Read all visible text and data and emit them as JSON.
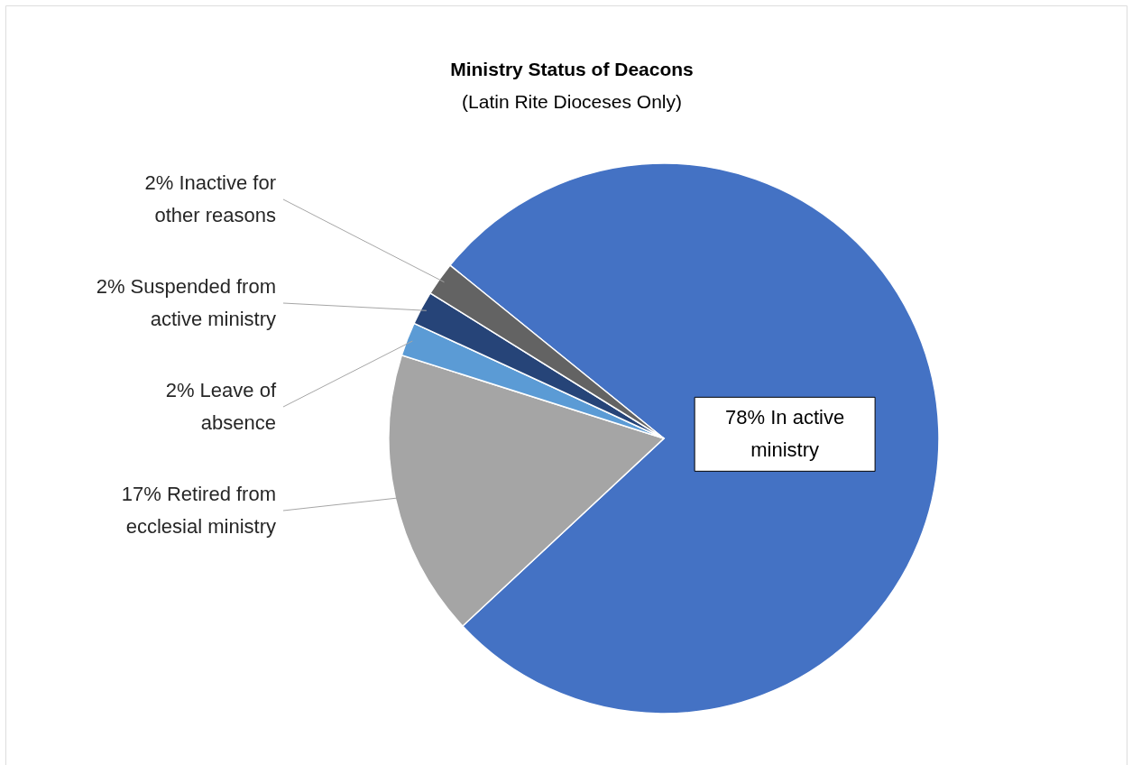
{
  "chart_data": {
    "type": "pie",
    "title": "Ministry Status of Deacons",
    "subtitle": "(Latin Rite Dioceses Only)",
    "categories": [
      "In active ministry",
      "Retired from ecclesial ministry",
      "Leave of absence",
      "Suspended from active ministry",
      "Inactive for other reasons"
    ],
    "values": [
      78,
      17,
      2,
      2,
      2
    ],
    "value_labels": [
      "78%",
      "17%",
      "2%",
      "2%",
      "2%"
    ],
    "colors": [
      "#4472c4",
      "#a5a5a5",
      "#5b9bd5",
      "#264478",
      "#636363"
    ]
  }
}
